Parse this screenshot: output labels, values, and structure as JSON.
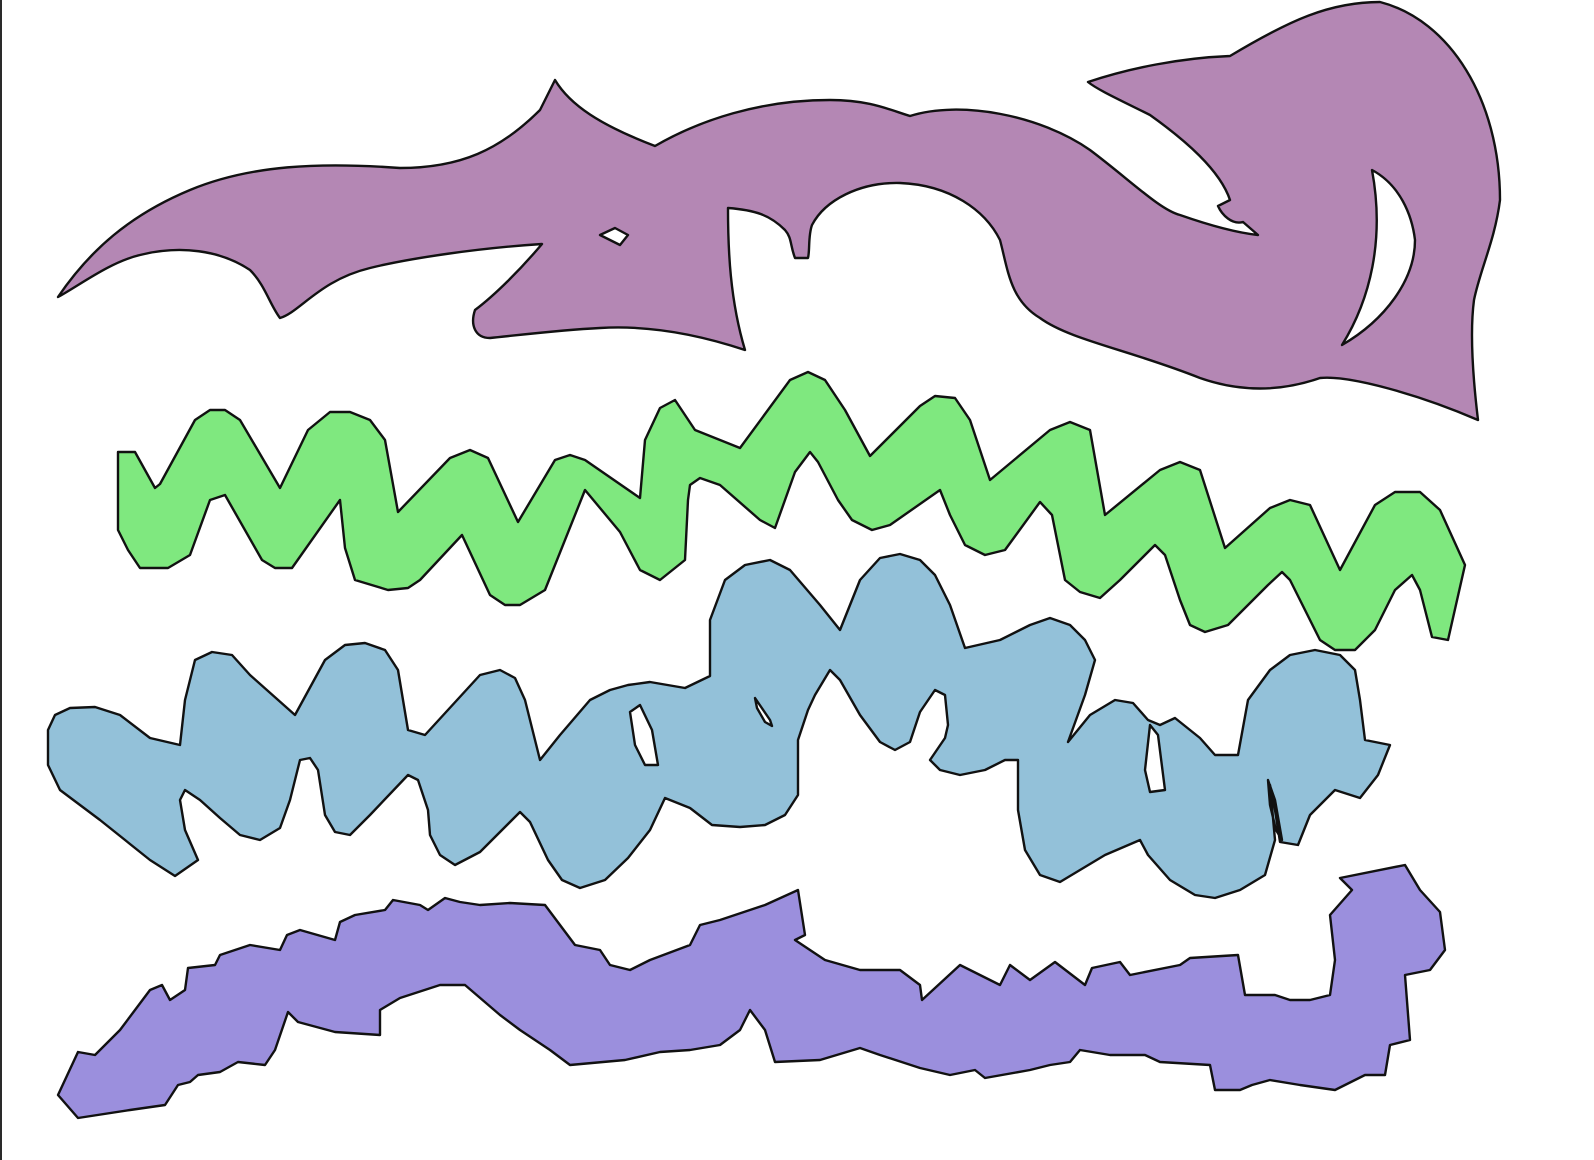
{
  "shapes": [
    {
      "name": "purple-mauve-blob-top",
      "fill": "#b487b4"
    },
    {
      "name": "green-zigzag-band",
      "fill": "#7fe87f"
    },
    {
      "name": "light-blue-wavy-band",
      "fill": "#93c1d9"
    },
    {
      "name": "lavender-jagged-band-bottom",
      "fill": "#9b8fdd"
    }
  ]
}
